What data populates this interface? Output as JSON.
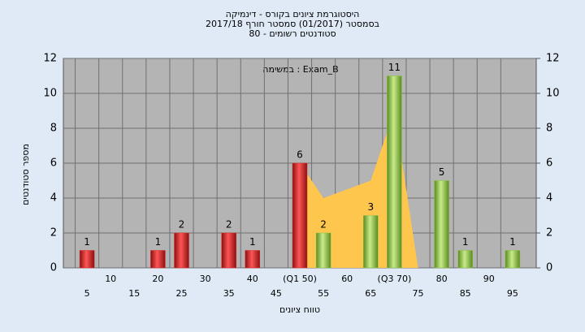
{
  "chart_data": {
    "type": "bar",
    "title": "היסטוגרמת ציונים בקורס - דינמיקה",
    "subtitle": "בסמסטר (01/2017) סמסטר חורף 2017/18",
    "subtitle2": "סטודנטים רשומים - 80",
    "annotation": "במשימה : Exam_B",
    "xlabel": "טווח ציונים",
    "ylabel": "מספר סטודנטים",
    "categories": [
      "5",
      "10",
      "15",
      "20",
      "25",
      "30",
      "35",
      "40",
      "45",
      "(Q1 50)",
      "55",
      "60",
      "65",
      "(Q3 70)",
      "75",
      "80",
      "85",
      "90",
      "95"
    ],
    "series": [
      {
        "color": "#ffc64d",
        "kind": "area",
        "values": [
          null,
          null,
          null,
          null,
          null,
          null,
          null,
          null,
          null,
          6,
          4,
          4.5,
          5,
          9,
          0,
          null,
          null,
          null,
          null
        ]
      },
      {
        "color": "#e02b2b",
        "values": [
          1,
          0,
          0,
          1,
          2,
          0,
          2,
          1,
          0,
          6,
          null,
          null,
          null,
          null,
          null,
          null,
          null,
          null,
          null
        ]
      },
      {
        "color": "#8cc43c",
        "values": [
          null,
          null,
          null,
          null,
          null,
          null,
          null,
          null,
          null,
          null,
          2,
          0,
          3,
          11,
          0,
          5,
          1,
          0,
          1
        ]
      }
    ],
    "ylim": [
      0,
      12
    ],
    "yticks": [
      0,
      2,
      4,
      6,
      8,
      10,
      12
    ],
    "y2lim": [
      0,
      12
    ],
    "y2ticks": [
      0,
      2,
      4,
      6,
      8,
      10,
      12
    ],
    "grid": true
  }
}
